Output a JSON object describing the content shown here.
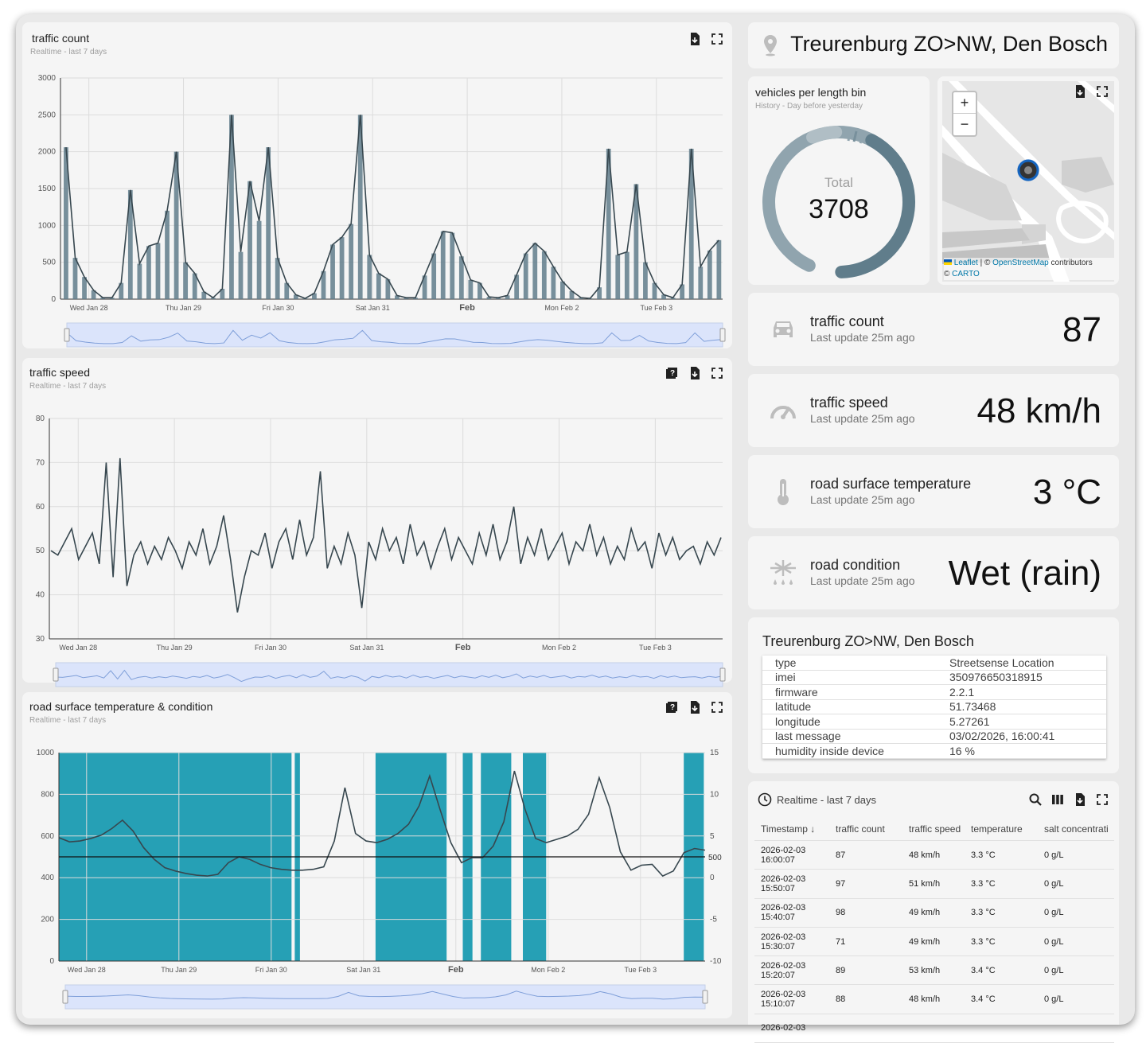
{
  "location_title": "Treurenburg ZO>NW, Den Bosch",
  "charts": {
    "traffic_count": {
      "title": "traffic count",
      "subtitle": "Realtime - last 7 days"
    },
    "traffic_speed": {
      "title": "traffic speed",
      "subtitle": "Realtime - last 7 days"
    },
    "road_temp": {
      "title": "road surface temperature & condition",
      "subtitle": "Realtime - last 7 days"
    }
  },
  "vehicles_bin": {
    "title": "vehicles per length bin",
    "subtitle": "History - Day before yesterday",
    "total_label": "Total",
    "total_value": "3708"
  },
  "map": {
    "zoom_in": "+",
    "zoom_out": "−",
    "attribution_leaflet": "Leaflet",
    "attribution_sep": " | © ",
    "attribution_osm": "OpenStreetMap",
    "attribution_contrib": " contributors",
    "attribution_carto_prefix": "© ",
    "attribution_carto": "CARTO"
  },
  "kpis": [
    {
      "title": "traffic count",
      "sub": "Last update 25m ago",
      "value": "87",
      "icon": "car-icon"
    },
    {
      "title": "traffic speed",
      "sub": "Last update 25m ago",
      "value": "48 km/h",
      "icon": "speedometer-icon"
    },
    {
      "title": "road surface temperature",
      "sub": "Last update 25m ago",
      "value": "3 °C",
      "icon": "thermometer-icon"
    },
    {
      "title": "road condition",
      "sub": "Last update 25m ago",
      "value": "Wet (rain)",
      "icon": "weather-snow-rain-icon"
    }
  ],
  "device_info": {
    "title": "Treurenburg ZO>NW, Den Bosch",
    "rows": [
      {
        "k": "type",
        "v": "Streetsense Location"
      },
      {
        "k": "imei",
        "v": "350976650318915"
      },
      {
        "k": "firmware",
        "v": "2.2.1"
      },
      {
        "k": "latitude",
        "v": "51.73468"
      },
      {
        "k": "longitude",
        "v": "5.27261"
      },
      {
        "k": "last message",
        "v": "03/02/2026, 16:00:41"
      },
      {
        "k": "humidity inside device",
        "v": "16 %"
      }
    ]
  },
  "table": {
    "range": "Realtime - last 7 days",
    "columns": [
      "Timestamp",
      "traffic count",
      "traffic speed",
      "temperature",
      "salt concentrati"
    ],
    "sort_arrow": "↓",
    "rows": [
      {
        "date": "2026-02-03",
        "time": "16:00:07",
        "count": "87",
        "speed": "48 km/h",
        "temp": "3.3 °C",
        "salt": "0 g/L"
      },
      {
        "date": "2026-02-03",
        "time": "15:50:07",
        "count": "97",
        "speed": "51 km/h",
        "temp": "3.3 °C",
        "salt": "0 g/L"
      },
      {
        "date": "2026-02-03",
        "time": "15:40:07",
        "count": "98",
        "speed": "49 km/h",
        "temp": "3.3 °C",
        "salt": "0 g/L"
      },
      {
        "date": "2026-02-03",
        "time": "15:30:07",
        "count": "71",
        "speed": "49 km/h",
        "temp": "3.3 °C",
        "salt": "0 g/L"
      },
      {
        "date": "2026-02-03",
        "time": "15:20:07",
        "count": "89",
        "speed": "53 km/h",
        "temp": "3.4 °C",
        "salt": "0 g/L"
      },
      {
        "date": "2026-02-03",
        "time": "15:10:07",
        "count": "88",
        "speed": "48 km/h",
        "temp": "3.4 °C",
        "salt": "0 g/L"
      },
      {
        "date": "2026-02-03",
        "time": "",
        "count": "",
        "speed": "",
        "temp": "",
        "salt": ""
      }
    ]
  },
  "chart_data": [
    {
      "type": "bar",
      "title": "traffic count",
      "x_ticks": [
        "Wed Jan 28",
        "Thu Jan 29",
        "Fri Jan 30",
        "Sat Jan 31",
        "Feb",
        "Mon Feb 2",
        "Tue Feb 3"
      ],
      "y_ticks": [
        "0",
        "500",
        "1000",
        "1500",
        "2000",
        "2500",
        "3000"
      ],
      "ylim": [
        0,
        3000
      ],
      "grid": true,
      "series": [
        {
          "values": [
            2060,
            560,
            300,
            120,
            20,
            20,
            220,
            1480,
            480,
            720,
            760,
            1200,
            2000,
            500,
            350,
            100,
            20,
            140,
            2500,
            640,
            1600,
            1060,
            2060,
            560,
            220,
            60,
            10,
            80,
            380,
            740,
            840,
            1020,
            2500,
            600,
            350,
            270,
            50,
            20,
            20,
            320,
            620,
            920,
            900,
            580,
            260,
            220,
            30,
            20,
            50,
            330,
            620,
            760,
            650,
            440,
            240,
            110,
            20,
            10,
            160,
            2040,
            600,
            640,
            1560,
            500,
            220,
            60,
            20,
            200,
            2040,
            440,
            660,
            800
          ]
        }
      ]
    },
    {
      "type": "line",
      "title": "traffic speed",
      "x_ticks": [
        "Wed Jan 28",
        "Thu Jan 29",
        "Fri Jan 30",
        "Sat Jan 31",
        "Feb",
        "Mon Feb 2",
        "Tue Feb 3"
      ],
      "y_ticks": [
        "30",
        "40",
        "50",
        "60",
        "70",
        "80"
      ],
      "ylim": [
        30,
        80
      ],
      "grid": true,
      "series": [
        {
          "values": [
            50,
            49,
            52,
            55,
            48,
            51,
            54,
            47,
            70,
            44,
            71,
            42,
            49,
            52,
            47,
            51,
            48,
            53,
            50,
            46,
            52,
            49,
            55,
            47,
            51,
            58,
            48,
            36,
            44,
            50,
            49,
            54,
            46,
            52,
            55,
            48,
            57,
            49,
            53,
            68,
            46,
            51,
            47,
            54,
            49,
            37,
            52,
            48,
            55,
            50,
            53,
            47,
            56,
            49,
            52,
            46,
            51,
            55,
            48,
            53,
            50,
            47,
            54,
            49,
            56,
            48,
            52,
            60,
            47,
            53,
            49,
            55,
            48,
            51,
            54,
            47,
            52,
            50,
            56,
            49,
            53,
            47,
            51,
            48,
            55,
            50,
            52,
            46,
            54,
            49,
            53,
            48,
            50,
            51,
            47,
            52,
            49,
            53
          ]
        }
      ]
    },
    {
      "type": "line",
      "title": "road surface temperature & condition",
      "x_ticks": [
        "Wed Jan 28",
        "Thu Jan 29",
        "Fri Jan 30",
        "Sat Jan 31",
        "Feb",
        "Mon Feb 2",
        "Tue Feb 3"
      ],
      "y_ticks": [
        "0",
        "200",
        "400",
        "600",
        "800",
        "1000"
      ],
      "y2_ticks": [
        "-10",
        "-5",
        "0",
        "5",
        "10",
        "15"
      ],
      "ylim": [
        0,
        1000
      ],
      "y2lim": [
        -10,
        15
      ],
      "reference_line": {
        "value": 500,
        "label": "500"
      },
      "grid": true,
      "series": [
        {
          "values": [
            4.8,
            4.3,
            4.4,
            4.7,
            5.1,
            5.9,
            6.9,
            5.6,
            3.6,
            2.2,
            1.2,
            0.8,
            0.5,
            0.3,
            0.2,
            0.4,
            1.8,
            2.5,
            2.2,
            1.6,
            1.2,
            1.0,
            0.9,
            0.9,
            1.0,
            1.3,
            4.4,
            10.8,
            5.3,
            4.4,
            4.2,
            4.6,
            5.3,
            6.4,
            8.6,
            12.2,
            8.1,
            4.2,
            1.8,
            2.4,
            2.4,
            3.8,
            6.7,
            12.8,
            8.2,
            4.7,
            4.2,
            4.6,
            5.0,
            5.8,
            7.6,
            12.0,
            8.4,
            3.1,
            0.9,
            1.5,
            1.6,
            0.2,
            0.8,
            3.0,
            3.5,
            3.3
          ]
        }
      ],
      "condition_bands": [
        [
          0,
          0.36
        ],
        [
          0.365,
          0.373
        ],
        [
          0.49,
          0.6
        ],
        [
          0.625,
          0.64
        ],
        [
          0.653,
          0.7
        ],
        [
          0.718,
          0.754
        ],
        [
          0.967,
          0.998
        ]
      ]
    }
  ],
  "colors": {
    "bar": "#607d8b",
    "line": "#37474f",
    "band": "#26a0b5",
    "gauge": "#78909c"
  }
}
